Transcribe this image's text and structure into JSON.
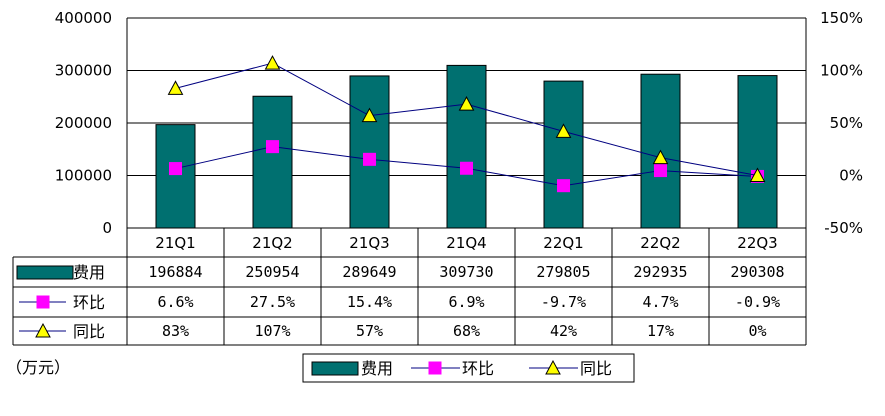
{
  "unit_note": "（万元）",
  "chart_data": {
    "type": "bar",
    "categories": [
      "21Q1",
      "21Q2",
      "21Q3",
      "21Q4",
      "22Q1",
      "22Q2",
      "22Q3"
    ],
    "series": [
      {
        "name": "费用",
        "kind": "bar",
        "axis": "left",
        "color": "#007070",
        "values": [
          196884,
          250954,
          289649,
          309730,
          279805,
          292935,
          290308
        ],
        "labels": [
          "196884",
          "250954",
          "289649",
          "309730",
          "279805",
          "292935",
          "290308"
        ]
      },
      {
        "name": "环比",
        "kind": "line",
        "axis": "right",
        "color": "#ff00ff",
        "marker": "square",
        "values": [
          6.6,
          27.5,
          15.4,
          6.9,
          -9.7,
          4.7,
          -0.9
        ],
        "labels": [
          "6.6%",
          "27.5%",
          "15.4%",
          "6.9%",
          "-9.7%",
          "4.7%",
          "-0.9%"
        ]
      },
      {
        "name": "同比",
        "kind": "line",
        "axis": "right",
        "color": "#ffff00",
        "marker": "triangle",
        "values": [
          83,
          107,
          57,
          68,
          42,
          17,
          0
        ],
        "labels": [
          "83%",
          "107%",
          "57%",
          "68%",
          "42%",
          "17%",
          "0%"
        ]
      }
    ],
    "y_left": {
      "ticks": [
        "400000",
        "300000",
        "200000",
        "100000",
        "0"
      ],
      "range": [
        0,
        400000
      ]
    },
    "y_right": {
      "ticks": [
        "150%",
        "100%",
        "50%",
        "0%",
        "-50%"
      ],
      "range": [
        -50,
        150
      ]
    },
    "grid": true,
    "legend": "bottom",
    "data_table": true
  }
}
